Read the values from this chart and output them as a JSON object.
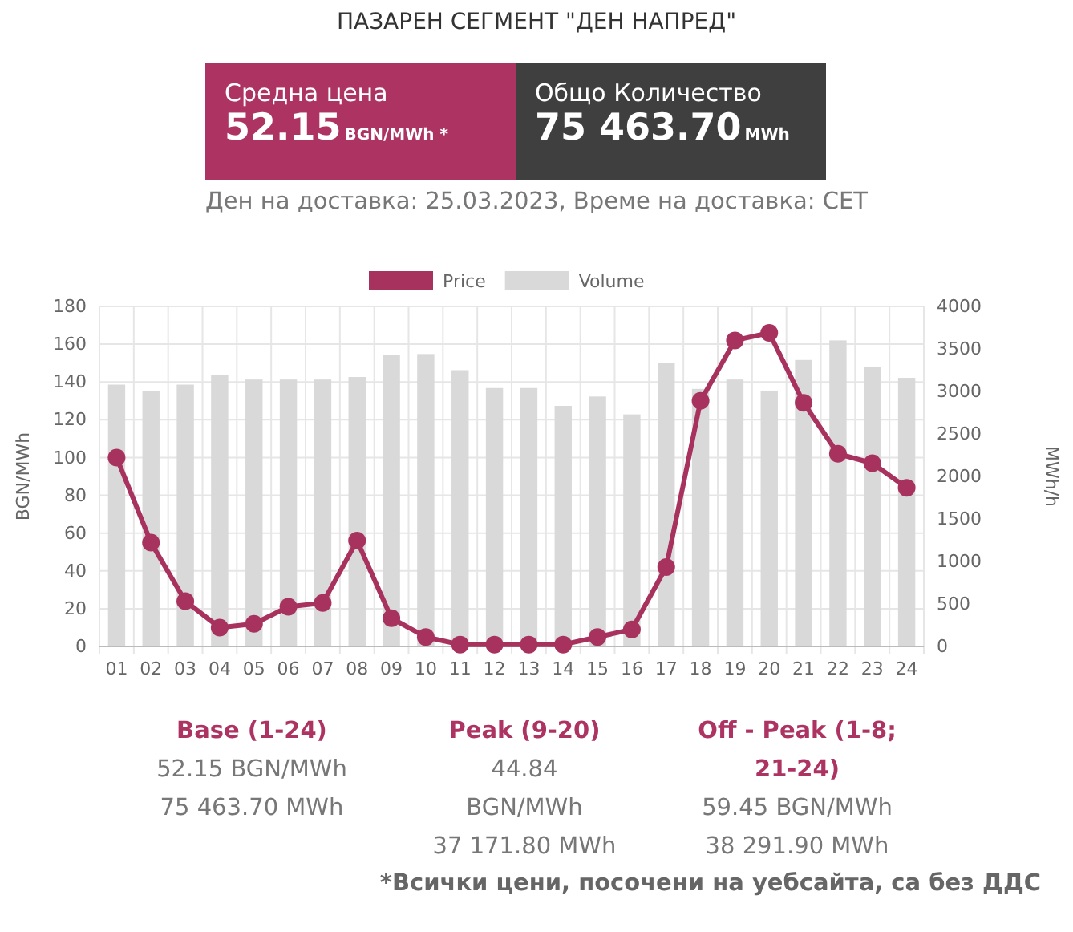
{
  "chart_data": {
    "type": "bar",
    "title": "ПАЗАРЕН СЕГМЕНТ \"ДЕН НАПРЕД\"",
    "subtitle": "Ден на доставка: 25.03.2023, Време на доставка: CET",
    "ylabel": "BGN/MWh",
    "y2label": "MWh/h",
    "categories": [
      "01",
      "02",
      "03",
      "04",
      "05",
      "06",
      "07",
      "08",
      "09",
      "10",
      "11",
      "12",
      "13",
      "14",
      "15",
      "16",
      "17",
      "18",
      "19",
      "20",
      "21",
      "22",
      "23",
      "24"
    ],
    "series": [
      {
        "name": "Price",
        "type": "line",
        "color": "#a8325e",
        "values": [
          100,
          55,
          24,
          10,
          12,
          21,
          23,
          56,
          15,
          5,
          1,
          1,
          1,
          1,
          5,
          9,
          42,
          130,
          162,
          166,
          129,
          102,
          97,
          84
        ]
      },
      {
        "name": "Volume",
        "axis": "y2",
        "color": "#d9d9d9",
        "values": [
          3080,
          3000,
          3080,
          3190,
          3140,
          3140,
          3140,
          3170,
          3430,
          3440,
          3250,
          3040,
          3040,
          2830,
          2940,
          2730,
          3330,
          3030,
          3140,
          3010,
          3370,
          3600,
          3290,
          3160
        ]
      }
    ],
    "ylim": [
      0,
      180
    ],
    "yticks": [
      0,
      20,
      40,
      60,
      80,
      100,
      120,
      140,
      160,
      180
    ],
    "y2lim": [
      0,
      4000
    ],
    "y2ticks": [
      0,
      500,
      1000,
      1500,
      2000,
      2500,
      3000,
      3500,
      4000
    ],
    "grid": true,
    "legend": "top",
    "marker": "circle",
    "line_style": "solid",
    "annotations": [
      "Средна цена",
      "52.15",
      "BGN/MWh *",
      "Общо Количество",
      "75 463.70",
      "MWh",
      "Base (1-24)",
      "52.15 BGN/MWh",
      "75 463.70 MWh",
      "Peak (9-20)",
      "44.84 BGN/MWh",
      "37 171.80 MWh",
      "Off - Peak (1-8; 21-24)",
      "59.45 BGN/MWh",
      "38 291.90 MWh",
      "*Всички цени, посочени на уебсайта, са без ДДС"
    ]
  }
}
